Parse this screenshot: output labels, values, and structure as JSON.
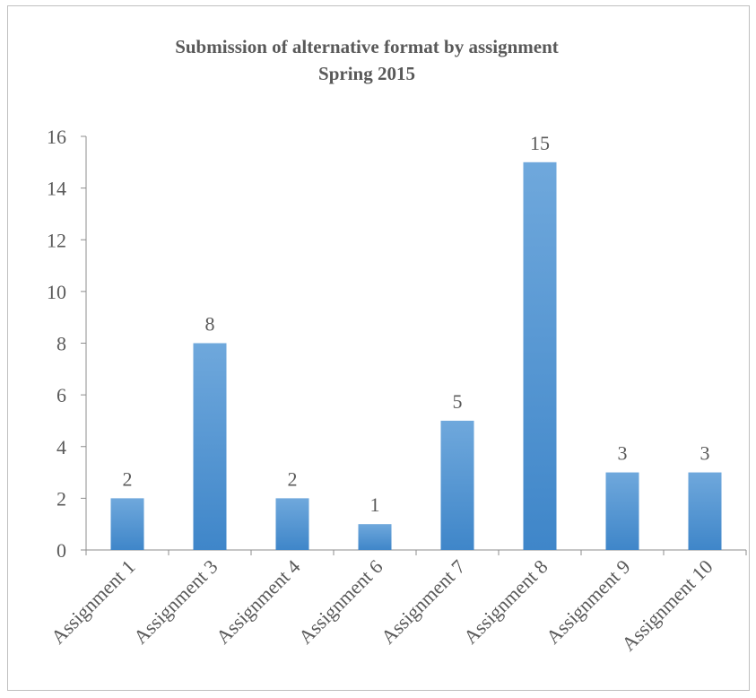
{
  "chart_data": {
    "type": "bar",
    "title": "Submission of alternative format by assignment",
    "subtitle": "Spring 2015",
    "xlabel": "",
    "ylabel": "",
    "categories": [
      "Assignment 1",
      "Assignment 3",
      "Assignment 4",
      "Assignment 6",
      "Assignment 7",
      "Assignment 8",
      "Assignment 9",
      "Assignment 10"
    ],
    "values": [
      2,
      8,
      2,
      1,
      5,
      15,
      3,
      3
    ],
    "ylim": [
      0,
      16
    ],
    "yticks": [
      0,
      2,
      4,
      6,
      8,
      10,
      12,
      14,
      16
    ],
    "grid": false,
    "legend": "none",
    "bar_color_top": "#6fa8dc",
    "bar_color_bottom": "#3f86c9",
    "axis_color": "#8c8c8c",
    "text_color": "#595959"
  }
}
